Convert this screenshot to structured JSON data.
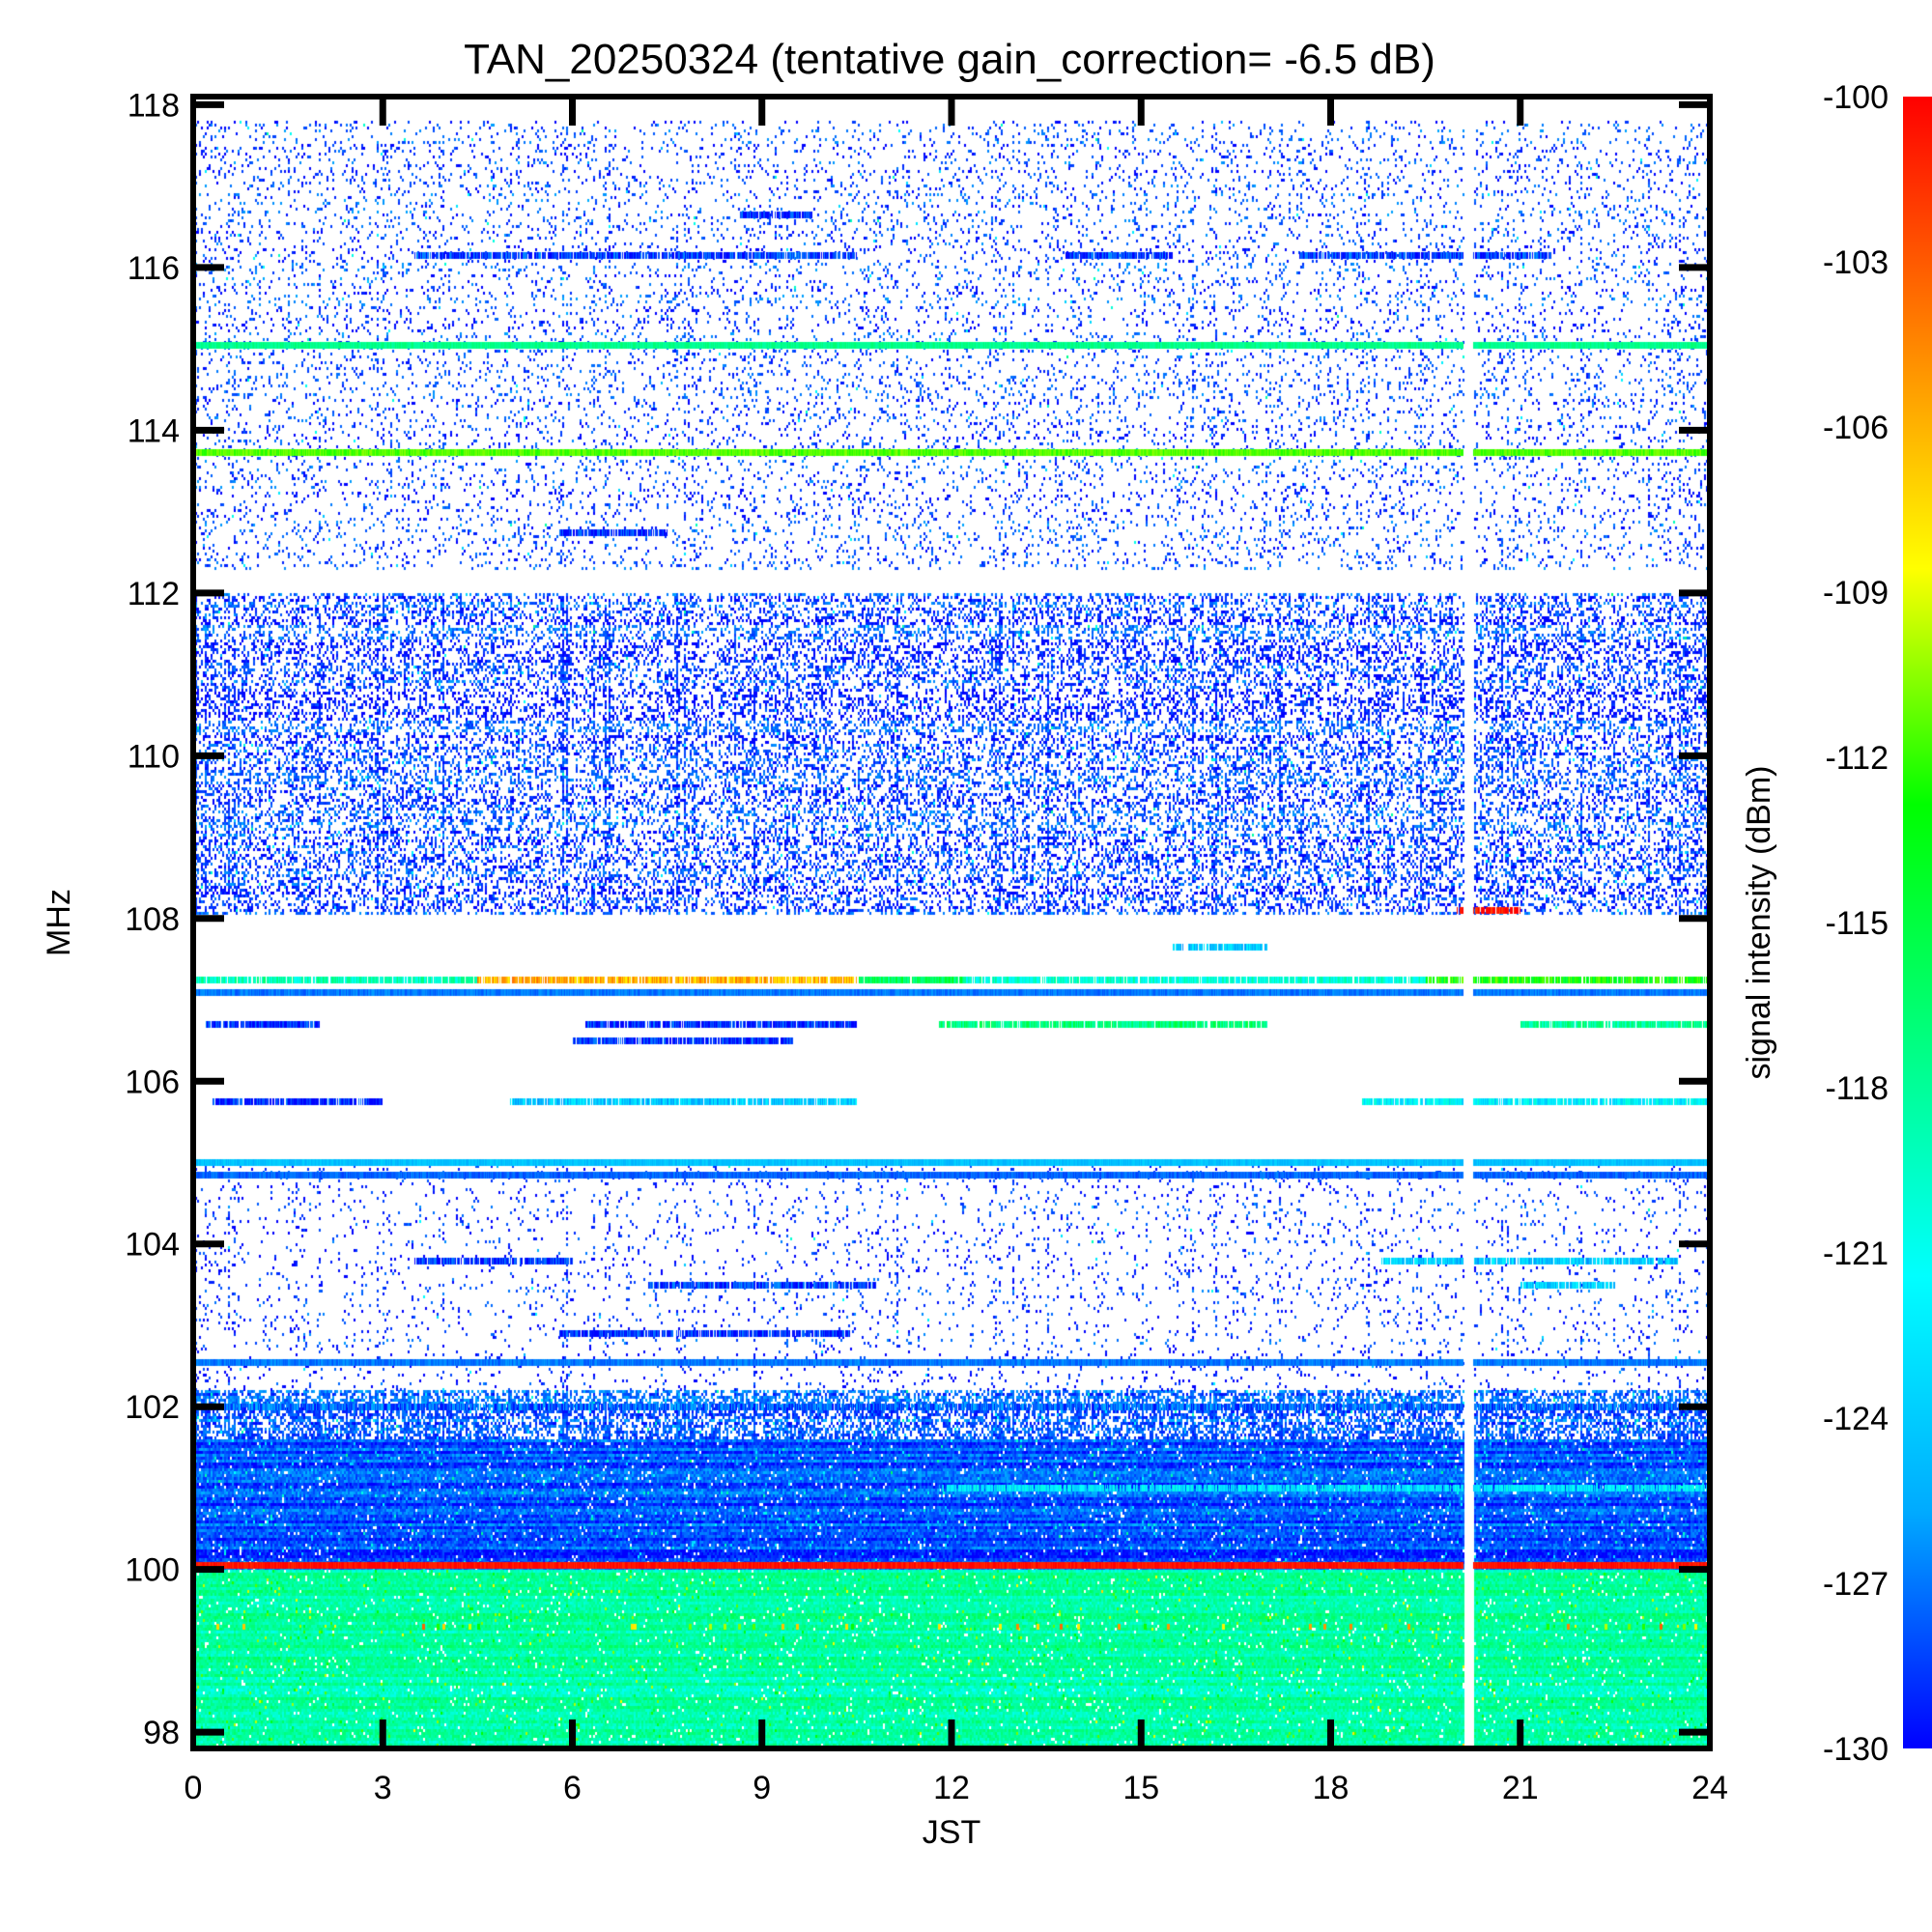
{
  "chart_data": {
    "type": "heatmap",
    "title": "TAN_20250324 (tentative gain_correction= -6.5 dB)",
    "xlabel": "JST",
    "ylabel": "MHz",
    "xlim": [
      0,
      24
    ],
    "ylim": [
      97.8,
      118.1
    ],
    "xticks": [
      "0",
      "3",
      "6",
      "9",
      "12",
      "15",
      "18",
      "21",
      "24"
    ],
    "xtick_values": [
      0,
      3,
      6,
      9,
      12,
      15,
      18,
      21,
      24
    ],
    "yticks": [
      "98",
      "100",
      "102",
      "104",
      "106",
      "108",
      "110",
      "112",
      "114",
      "116",
      "118"
    ],
    "ytick_values": [
      98,
      100,
      102,
      104,
      106,
      108,
      110,
      112,
      114,
      116,
      118
    ],
    "colorbar": {
      "label": "signal intensity (dBm)",
      "ticks": [
        "-100",
        "-103",
        "-106",
        "-109",
        "-112",
        "-115",
        "-118",
        "-121",
        "-124",
        "-127",
        "-130"
      ],
      "tick_values": [
        -100,
        -103,
        -106,
        -109,
        -112,
        -115,
        -118,
        -121,
        -124,
        -127,
        -130
      ],
      "range": [
        -130,
        -100
      ],
      "colormap": [
        "#0000ff",
        "#00aaff",
        "#00ffff",
        "#00ff80",
        "#00ff00",
        "#ffff00",
        "#ff8000",
        "#ff0000"
      ]
    },
    "data_gap": {
      "start": 20.1,
      "end": 20.25
    },
    "background_bands": [
      {
        "f0": 97.8,
        "f1": 100.0,
        "level": -118.5,
        "texture": "dense"
      },
      {
        "f0": 100.0,
        "f1": 101.6,
        "level": -128.0,
        "texture": "dense"
      },
      {
        "f0": 101.6,
        "f1": 102.2,
        "level": -128.0,
        "texture": "stripy"
      },
      {
        "f0": 102.2,
        "f1": 105.0,
        "level": -129.0,
        "texture": "sparse"
      },
      {
        "f0": 108.05,
        "f1": 112.0,
        "level": -128.5,
        "texture": "medium"
      },
      {
        "f0": 112.3,
        "f1": 117.8,
        "level": -128.5,
        "texture": "light"
      }
    ],
    "persistent_lines": [
      {
        "freq": 100.05,
        "level": -100.5
      },
      {
        "freq": 113.73,
        "level": -111.5
      },
      {
        "freq": 115.05,
        "level": -117.5
      },
      {
        "freq": 105.0,
        "level": -124.5
      },
      {
        "freq": 104.85,
        "level": -127.5
      },
      {
        "freq": 107.1,
        "level": -127.0
      },
      {
        "freq": 102.55,
        "level": -127.0
      }
    ],
    "segments": [
      {
        "freq": 107.25,
        "t0": 0.0,
        "t1": 4.5,
        "level": -119.0
      },
      {
        "freq": 107.25,
        "t0": 4.5,
        "t1": 10.5,
        "level": -106.0
      },
      {
        "freq": 107.25,
        "t0": 10.5,
        "t1": 12.2,
        "level": -116.0
      },
      {
        "freq": 107.25,
        "t0": 12.2,
        "t1": 19.5,
        "level": -120.0
      },
      {
        "freq": 107.25,
        "t0": 19.5,
        "t1": 24.0,
        "level": -113.0
      },
      {
        "freq": 108.1,
        "t0": 20.0,
        "t1": 21.0,
        "level": -100.0
      },
      {
        "freq": 106.7,
        "t0": 11.8,
        "t1": 17.0,
        "level": -117.0
      },
      {
        "freq": 106.7,
        "t0": 21.0,
        "t1": 24.0,
        "level": -118.0
      },
      {
        "freq": 106.7,
        "t0": 0.2,
        "t1": 2.0,
        "level": -129.0
      },
      {
        "freq": 106.7,
        "t0": 6.2,
        "t1": 10.5,
        "level": -129.0
      },
      {
        "freq": 106.5,
        "t0": 6.0,
        "t1": 9.5,
        "level": -129.0
      },
      {
        "freq": 105.75,
        "t0": 5.0,
        "t1": 10.5,
        "level": -124.0
      },
      {
        "freq": 105.75,
        "t0": 18.5,
        "t1": 24.0,
        "level": -122.0
      },
      {
        "freq": 105.75,
        "t0": 0.3,
        "t1": 3.0,
        "level": -129.0
      },
      {
        "freq": 107.65,
        "t0": 15.5,
        "t1": 17.0,
        "level": -124.0
      },
      {
        "freq": 103.8,
        "t0": 18.8,
        "t1": 23.5,
        "level": -124.0
      },
      {
        "freq": 103.8,
        "t0": 3.5,
        "t1": 6.0,
        "level": -129.0
      },
      {
        "freq": 103.5,
        "t0": 7.2,
        "t1": 10.8,
        "level": -128.5
      },
      {
        "freq": 103.5,
        "t0": 21.0,
        "t1": 22.5,
        "level": -124.0
      },
      {
        "freq": 102.9,
        "t0": 5.8,
        "t1": 10.4,
        "level": -129.0
      },
      {
        "freq": 101.0,
        "t0": 11.8,
        "t1": 24.0,
        "level": -122.5
      },
      {
        "freq": 116.15,
        "t0": 3.5,
        "t1": 10.5,
        "level": -128.5
      },
      {
        "freq": 116.15,
        "t0": 13.8,
        "t1": 15.5,
        "level": -128.5
      },
      {
        "freq": 116.15,
        "t0": 17.5,
        "t1": 21.5,
        "level": -128.5
      },
      {
        "freq": 116.65,
        "t0": 8.6,
        "t1": 9.8,
        "level": -129.0
      },
      {
        "freq": 112.75,
        "t0": 5.8,
        "t1": 7.5,
        "level": -129.0
      },
      {
        "freq": 102.0,
        "t0": 0.0,
        "t1": 24.0,
        "level": -127.5
      }
    ],
    "spot_row": {
      "freq": 99.3,
      "level": -108.0,
      "density": 0.08
    }
  }
}
